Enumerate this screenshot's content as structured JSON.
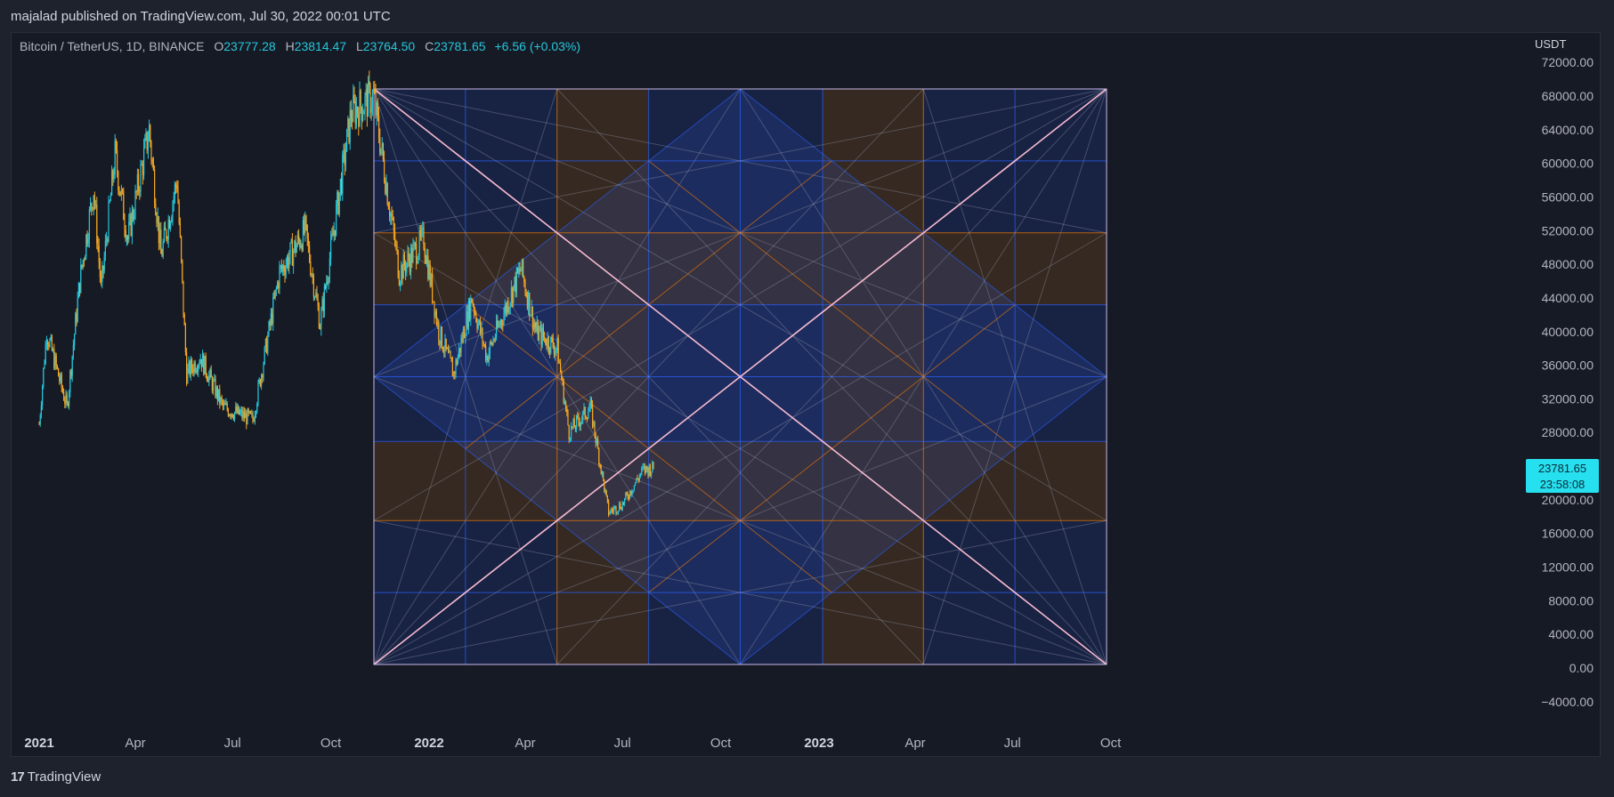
{
  "header": {
    "published_text": "majalad published on TradingView.com, Jul 30, 2022 00:01 UTC"
  },
  "legend": {
    "symbol": "Bitcoin / TetherUS, 1D, BINANCE",
    "open_label": "O",
    "open": "23777.28",
    "high_label": "H",
    "high": "23814.47",
    "low_label": "L",
    "low": "23764.50",
    "close_label": "C",
    "close": "23781.65",
    "change": "+6.56 (+0.03%)"
  },
  "price_axis": {
    "unit": "USDT",
    "ticks": [
      "72000.00",
      "68000.00",
      "64000.00",
      "60000.00",
      "56000.00",
      "52000.00",
      "48000.00",
      "44000.00",
      "40000.00",
      "36000.00",
      "32000.00",
      "28000.00",
      "24000.00",
      "20000.00",
      "16000.00",
      "12000.00",
      "8000.00",
      "4000.00",
      "0.00",
      "−4000.00"
    ]
  },
  "current_price": {
    "price": "23781.65",
    "countdown": "23:58:08"
  },
  "time_axis": {
    "ticks": [
      {
        "label": "2021",
        "major": true
      },
      {
        "label": "Apr",
        "major": false
      },
      {
        "label": "Jul",
        "major": false
      },
      {
        "label": "Oct",
        "major": false
      },
      {
        "label": "2022",
        "major": true
      },
      {
        "label": "Apr",
        "major": false
      },
      {
        "label": "Jul",
        "major": false
      },
      {
        "label": "Oct",
        "major": false
      },
      {
        "label": "2023",
        "major": true
      },
      {
        "label": "Apr",
        "major": false
      },
      {
        "label": "Jul",
        "major": false
      },
      {
        "label": "Oct",
        "major": false
      }
    ]
  },
  "footer": {
    "brand": "TradingView",
    "logo": "17"
  },
  "colors": {
    "bull": "#26c6da",
    "bear": "#f5a623",
    "gann_blue": "#2962ff",
    "gann_orange": "#f57c00",
    "gann_pink": "#f8bbd0",
    "badge": "#26e0f0"
  },
  "chart_data": {
    "type": "candlestick",
    "symbol": "BTCUSDT",
    "timeframe": "1D",
    "ylim": [
      -4000,
      72000
    ],
    "overlay": "Gann box / square",
    "price_path": [
      {
        "date": "2021-01-01",
        "price": 29000
      },
      {
        "date": "2021-01-08",
        "price": 40000
      },
      {
        "date": "2021-01-27",
        "price": 31000
      },
      {
        "date": "2021-02-08",
        "price": 46000
      },
      {
        "date": "2021-02-21",
        "price": 57000
      },
      {
        "date": "2021-02-28",
        "price": 45000
      },
      {
        "date": "2021-03-13",
        "price": 61000
      },
      {
        "date": "2021-03-25",
        "price": 51000
      },
      {
        "date": "2021-04-14",
        "price": 64000
      },
      {
        "date": "2021-04-25",
        "price": 49000
      },
      {
        "date": "2021-05-10",
        "price": 58000
      },
      {
        "date": "2021-05-19",
        "price": 35000
      },
      {
        "date": "2021-06-01",
        "price": 37000
      },
      {
        "date": "2021-06-22",
        "price": 31000
      },
      {
        "date": "2021-07-20",
        "price": 29500
      },
      {
        "date": "2021-08-14",
        "price": 47000
      },
      {
        "date": "2021-09-07",
        "price": 52000
      },
      {
        "date": "2021-09-21",
        "price": 41000
      },
      {
        "date": "2021-10-20",
        "price": 66000
      },
      {
        "date": "2021-11-10",
        "price": 68000
      },
      {
        "date": "2021-11-26",
        "price": 54000
      },
      {
        "date": "2021-12-04",
        "price": 47000
      },
      {
        "date": "2021-12-27",
        "price": 51000
      },
      {
        "date": "2022-01-10",
        "price": 40000
      },
      {
        "date": "2022-01-24",
        "price": 35000
      },
      {
        "date": "2022-02-10",
        "price": 44000
      },
      {
        "date": "2022-02-24",
        "price": 37000
      },
      {
        "date": "2022-03-28",
        "price": 47500
      },
      {
        "date": "2022-04-11",
        "price": 40000
      },
      {
        "date": "2022-05-01",
        "price": 38000
      },
      {
        "date": "2022-05-12",
        "price": 28000
      },
      {
        "date": "2022-06-01",
        "price": 31000
      },
      {
        "date": "2022-06-18",
        "price": 18500
      },
      {
        "date": "2022-07-01",
        "price": 19500
      },
      {
        "date": "2022-07-20",
        "price": 23500
      },
      {
        "date": "2022-07-30",
        "price": 23781.65
      }
    ]
  }
}
